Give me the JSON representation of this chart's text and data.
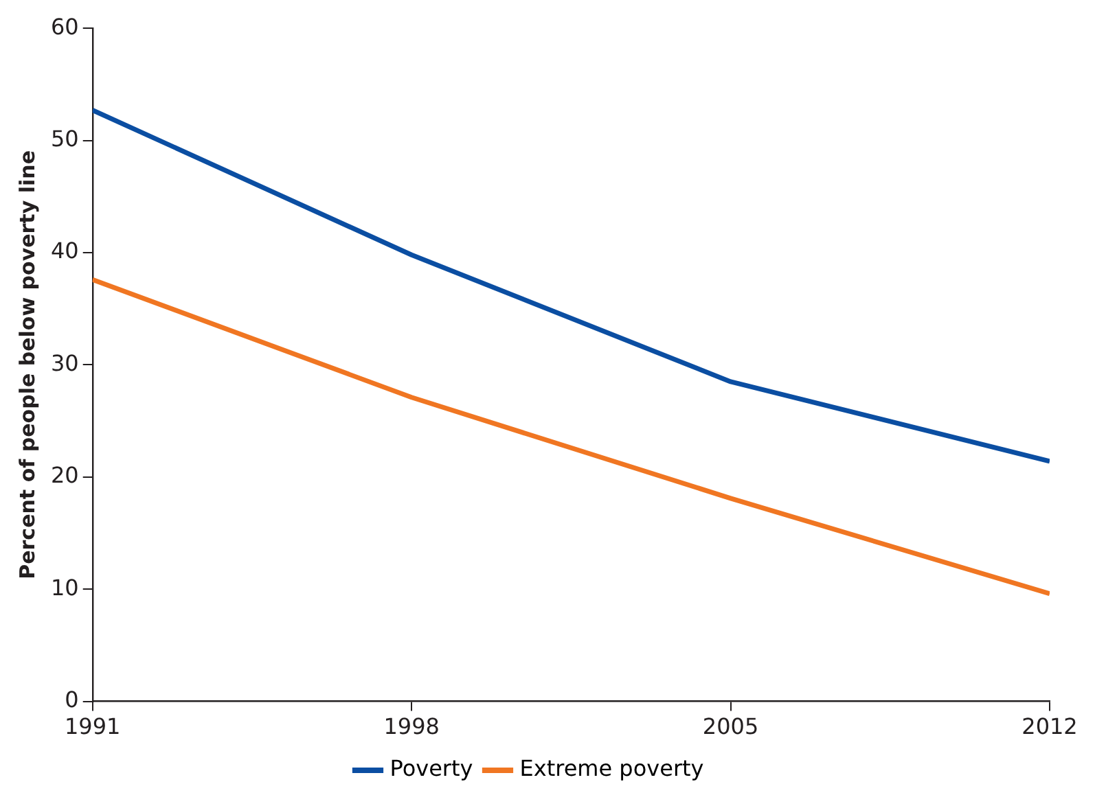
{
  "chart_data": {
    "type": "line",
    "ylabel": "Percent of people below poverty line",
    "x": [
      1991,
      1998,
      2005,
      2012
    ],
    "xlim": [
      1991,
      2012
    ],
    "xticks": [
      1991,
      1998,
      2005,
      2012
    ],
    "ylim": [
      0,
      60
    ],
    "yticks": [
      0,
      10,
      20,
      30,
      40,
      50,
      60
    ],
    "series": [
      {
        "name": "Poverty",
        "color": "#0b4ea2",
        "values": [
          52.7,
          39.8,
          28.5,
          21.4
        ]
      },
      {
        "name": "Extreme poverty",
        "color": "#f07622",
        "values": [
          37.6,
          27.1,
          18.1,
          9.6
        ]
      }
    ],
    "grid": false,
    "legend": "bottom",
    "marker": "none",
    "line_style": "solid"
  }
}
